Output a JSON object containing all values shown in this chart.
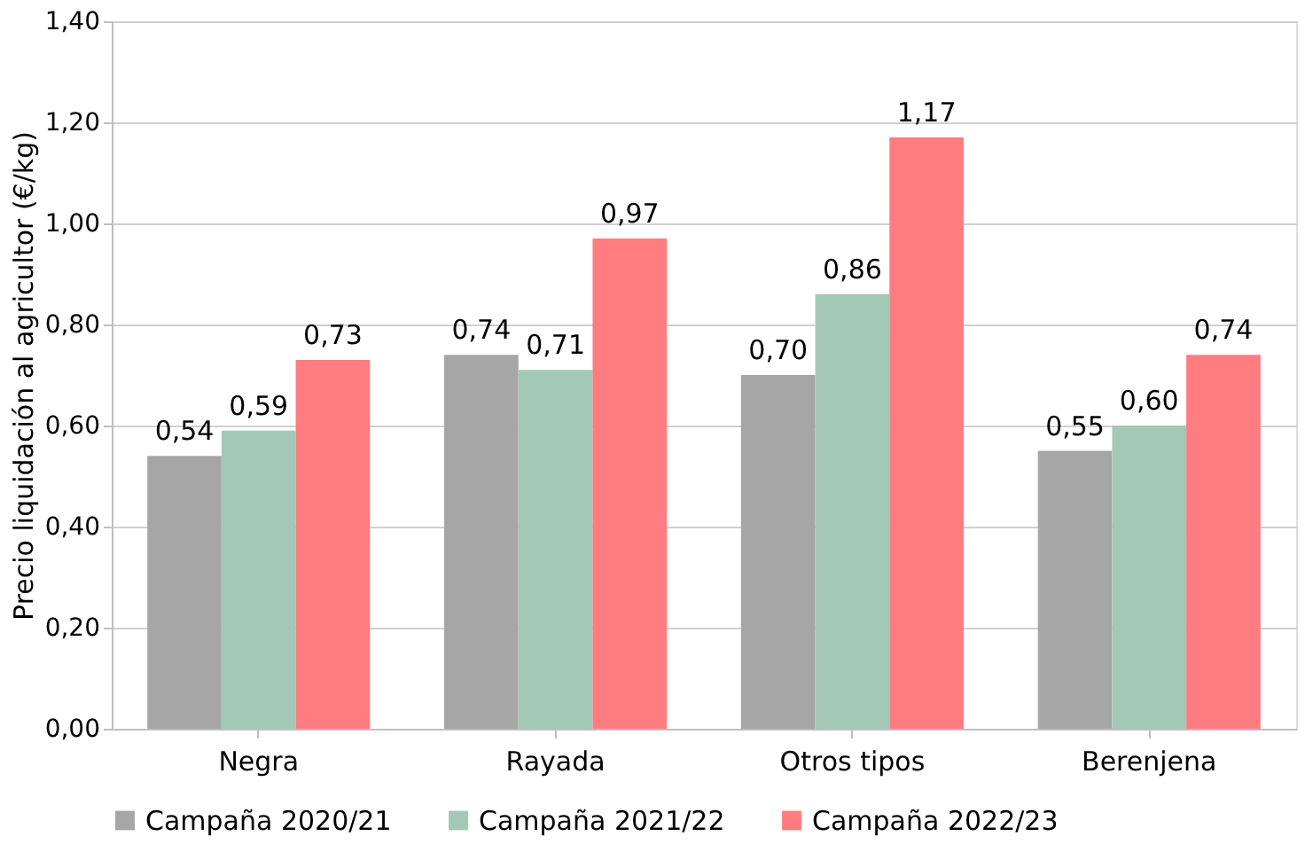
{
  "chart_data": {
    "type": "bar",
    "ylabel": "Precio liquidación al agricultor (€/kg)",
    "categories": [
      "Negra",
      "Rayada",
      "Otros tipos",
      "Berenjena"
    ],
    "series": [
      {
        "name": "Campaña 2020/21",
        "color": "#a6a6a6",
        "values": [
          0.54,
          0.74,
          0.7,
          0.55
        ],
        "value_labels": [
          "0,54",
          "0,74",
          "0,70",
          "0,55"
        ]
      },
      {
        "name": "Campaña 2021/22",
        "color": "#a3c8b8",
        "values": [
          0.59,
          0.71,
          0.86,
          0.6
        ],
        "value_labels": [
          "0,59",
          "0,71",
          "0,86",
          "0,60"
        ]
      },
      {
        "name": "Campaña 2022/23",
        "color": "#ff7c80",
        "values": [
          0.73,
          0.97,
          1.17,
          0.74
        ],
        "value_labels": [
          "0,73",
          "0,97",
          "1,17",
          "0,74"
        ]
      }
    ],
    "ylim": [
      0,
      1.4
    ],
    "yticks": [
      {
        "value": 0,
        "label": "0,00"
      },
      {
        "value": 0.2,
        "label": "0,20"
      },
      {
        "value": 0.4,
        "label": "0,40"
      },
      {
        "value": 0.6,
        "label": "0,60"
      },
      {
        "value": 0.8,
        "label": "0,80"
      },
      {
        "value": 1.0,
        "label": "1,00"
      },
      {
        "value": 1.2,
        "label": "1,20"
      },
      {
        "value": 1.4,
        "label": "1,40"
      }
    ],
    "grid": "y",
    "legend": "bottom"
  }
}
